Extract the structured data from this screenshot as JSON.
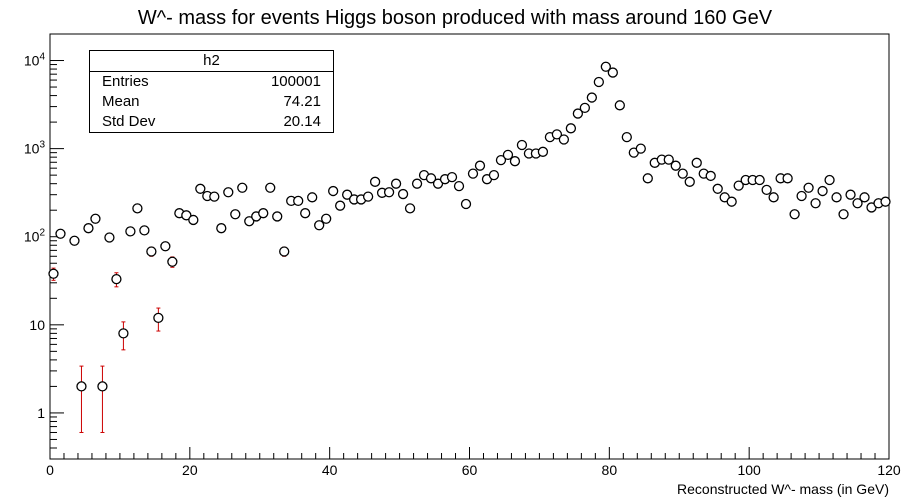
{
  "chart_data": {
    "type": "scatter",
    "title": "W^- mass for events Higgs boson produced with mass around 160 GeV",
    "xlabel": "Reconstructed W^- mass (in GeV)",
    "ylabel": "",
    "xlim": [
      0,
      120
    ],
    "ylim": [
      0.3,
      20000
    ],
    "yscale": "log",
    "xticks": [
      0,
      20,
      40,
      60,
      80,
      100,
      120
    ],
    "ytick_labels": [
      "1",
      "10",
      "10^2",
      "10^3",
      "10^4"
    ],
    "marker": "open-circle",
    "error_bar_color": "#cc0000",
    "stats": {
      "name": "h2",
      "entries_label": "Entries",
      "entries": "100001",
      "mean_label": "Mean",
      "mean": "74.21",
      "std_label": "Std Dev",
      "std": "20.14"
    },
    "x": [
      0.5,
      1.5,
      3.5,
      4.5,
      5.5,
      6.5,
      7.5,
      8.5,
      9.5,
      10.5,
      11.5,
      12.5,
      13.5,
      14.5,
      15.5,
      16.5,
      17.5,
      18.5,
      19.5,
      20.5,
      21.5,
      22.5,
      23.5,
      24.5,
      25.5,
      26.5,
      27.5,
      28.5,
      29.5,
      30.5,
      31.5,
      32.5,
      33.5,
      34.5,
      35.5,
      36.5,
      37.5,
      38.5,
      39.5,
      40.5,
      41.5,
      42.5,
      43.5,
      44.5,
      45.5,
      46.5,
      47.5,
      48.5,
      49.5,
      50.5,
      51.5,
      52.5,
      53.5,
      54.5,
      55.5,
      56.5,
      57.5,
      58.5,
      59.5,
      60.5,
      61.5,
      62.5,
      63.5,
      64.5,
      65.5,
      66.5,
      67.5,
      68.5,
      69.5,
      70.5,
      71.5,
      72.5,
      73.5,
      74.5,
      75.5,
      76.5,
      77.5,
      78.5,
      79.5,
      80.5,
      81.5,
      82.5,
      83.5,
      84.5,
      85.5,
      86.5,
      87.5,
      88.5,
      89.5,
      90.5,
      91.5,
      92.5,
      93.5,
      94.5,
      95.5,
      96.5,
      97.5,
      98.5,
      99.5,
      100.5,
      101.5,
      102.5,
      103.5,
      104.5,
      105.5,
      106.5,
      107.5,
      108.5,
      109.5,
      110.5,
      111.5,
      112.5,
      113.5,
      114.5,
      115.5,
      116.5,
      117.5,
      118.5,
      119.5
    ],
    "y": [
      38,
      108,
      90,
      2,
      125,
      160,
      2,
      98,
      33,
      8,
      115,
      210,
      118,
      68,
      12,
      78,
      52,
      185,
      175,
      155,
      350,
      290,
      285,
      125,
      320,
      180,
      360,
      150,
      170,
      185,
      360,
      170,
      68,
      255,
      255,
      185,
      280,
      135,
      160,
      330,
      225,
      300,
      265,
      265,
      285,
      420,
      315,
      320,
      400,
      305,
      210,
      400,
      500,
      460,
      400,
      450,
      475,
      375,
      235,
      520,
      640,
      450,
      500,
      740,
      850,
      720,
      1100,
      880,
      880,
      920,
      1350,
      1450,
      1270,
      1700,
      2500,
      2900,
      3800,
      5700,
      8500,
      7300,
      3100,
      1350,
      900,
      1000,
      460,
      690,
      750,
      750,
      640,
      520,
      420,
      690,
      520,
      490,
      350,
      280,
      250,
      380,
      440,
      440,
      440,
      340,
      280,
      460,
      460,
      180,
      290,
      360,
      240,
      330,
      440,
      280,
      180,
      300,
      240,
      280,
      215,
      240,
      250
    ],
    "err": [
      6,
      0,
      0,
      1.4,
      0,
      0,
      1.4,
      0,
      6,
      2.8,
      0,
      0,
      0,
      8,
      3.5,
      0,
      7,
      0,
      0,
      0,
      0,
      0,
      0,
      0,
      0,
      0,
      0,
      0,
      0,
      0,
      0,
      0,
      8,
      0,
      0,
      0,
      0,
      0,
      0,
      0,
      0,
      0,
      0,
      0,
      0,
      0,
      0,
      0,
      0,
      0,
      0,
      0,
      0,
      0,
      0,
      0,
      0,
      0,
      0,
      0,
      0,
      0,
      0,
      0,
      0,
      0,
      0,
      0,
      0,
      0,
      0,
      0,
      0,
      0,
      0,
      0,
      0,
      0,
      0,
      0,
      0,
      0,
      0,
      0,
      0,
      0,
      0,
      0,
      0,
      0,
      0,
      0,
      0,
      0,
      0,
      0,
      0,
      0,
      0,
      0,
      0,
      0,
      0,
      0,
      0,
      0,
      0,
      0,
      0,
      0,
      0,
      0,
      0,
      0,
      0,
      0,
      0,
      0,
      0
    ]
  }
}
